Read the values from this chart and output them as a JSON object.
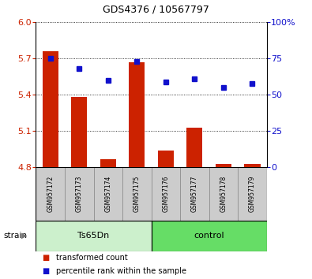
{
  "title": "GDS4376 / 10567797",
  "samples": [
    "GSM957172",
    "GSM957173",
    "GSM957174",
    "GSM957175",
    "GSM957176",
    "GSM957177",
    "GSM957178",
    "GSM957179"
  ],
  "transformed_counts": [
    5.76,
    5.38,
    4.87,
    5.67,
    4.94,
    5.13,
    4.83,
    4.83
  ],
  "percentile_ranks": [
    75,
    68,
    60,
    73,
    59,
    61,
    55,
    58
  ],
  "ylim_left": [
    4.8,
    6.0
  ],
  "yticks_left": [
    4.8,
    5.1,
    5.4,
    5.7,
    6.0
  ],
  "ylim_right": [
    0,
    100
  ],
  "yticks_right": [
    0,
    25,
    50,
    75,
    100
  ],
  "strain_groups": [
    {
      "label": "Ts65Dn",
      "n_samples": 4,
      "color": "#ccf0cc"
    },
    {
      "label": "control",
      "n_samples": 4,
      "color": "#66dd66"
    }
  ],
  "bar_color": "#cc2200",
  "dot_color": "#1111cc",
  "bar_width": 0.55,
  "tick_label_bg": "#cccccc",
  "legend_items": [
    {
      "label": "transformed count",
      "color": "#cc2200"
    },
    {
      "label": "percentile rank within the sample",
      "color": "#1111cc"
    }
  ],
  "strain_label": "strain",
  "ylabel_left_color": "#cc2200",
  "ylabel_right_color": "#1111cc",
  "title_fontsize": 9,
  "ytick_fontsize": 8,
  "sample_fontsize": 5.5,
  "legend_fontsize": 7,
  "strain_fontsize": 8
}
